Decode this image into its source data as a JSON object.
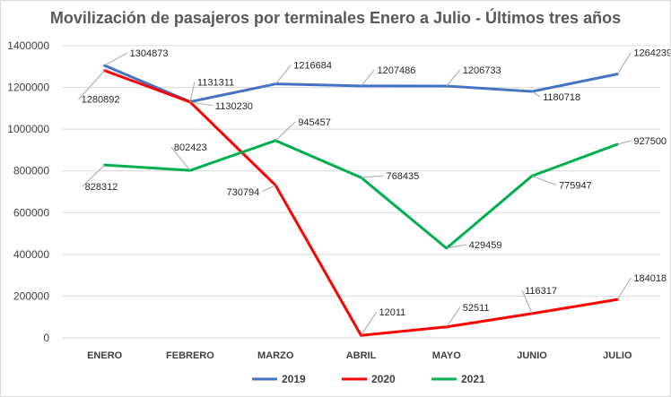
{
  "chart_data": {
    "type": "line",
    "title": "Movilización de pasajeros por terminales Enero a Julio - Últimos tres años",
    "categories": [
      "ENERO",
      "FEBRERO",
      "MARZO",
      "ABRIL",
      "MAYO",
      "JUNIO",
      "JULIO"
    ],
    "ylim": [
      0,
      1400000
    ],
    "yticks": [
      "0",
      "200000",
      "400000",
      "600000",
      "800000",
      "1000000",
      "1200000",
      "1400000"
    ],
    "grid": true,
    "legend": "bottom",
    "series": [
      {
        "name": "2019",
        "color": "#4472C4",
        "values": [
          1304873,
          1131311,
          1216684,
          1207486,
          1206733,
          1180718,
          1264239
        ]
      },
      {
        "name": "2020",
        "color": "#FF0000",
        "values": [
          1280892,
          1130230,
          730794,
          12011,
          52511,
          116317,
          184018
        ]
      },
      {
        "name": "2021",
        "color": "#00B050",
        "values": [
          828312,
          802423,
          945457,
          768435,
          429459,
          775947,
          927500
        ]
      }
    ]
  }
}
